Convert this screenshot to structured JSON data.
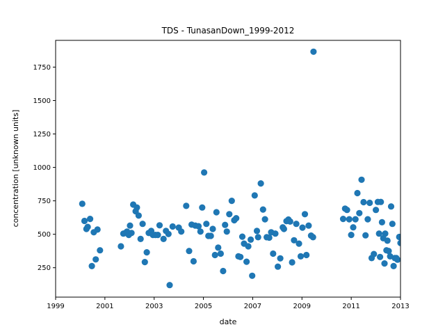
{
  "chart_data": {
    "type": "scatter",
    "title": "TDS - TunasanDown_1999-2012",
    "xlabel": "date",
    "ylabel": "concentration [unknown units]",
    "xlim": [
      1999,
      2013
    ],
    "ylim": [
      30,
      1950
    ],
    "x_ticks": [
      "1999",
      "2001",
      "2003",
      "2005",
      "2007",
      "2009",
      "2011",
      "2013"
    ],
    "x_tick_values": [
      1999,
      2001,
      2003,
      2005,
      2007,
      2009,
      2011,
      2013
    ],
    "y_ticks": [
      "250",
      "500",
      "750",
      "1000",
      "1250",
      "1500",
      "1750"
    ],
    "y_tick_values": [
      250,
      500,
      750,
      1000,
      1250,
      1500,
      1750
    ],
    "grid": false,
    "marker_color": "#1f77b4",
    "series": [
      {
        "points": [
          [
            2000.08,
            728
          ],
          [
            2000.17,
            600
          ],
          [
            2000.25,
            540
          ],
          [
            2000.3,
            555
          ],
          [
            2000.4,
            615
          ],
          [
            2000.47,
            262
          ],
          [
            2000.55,
            515
          ],
          [
            2000.63,
            312
          ],
          [
            2000.7,
            535
          ],
          [
            2000.8,
            380
          ],
          [
            2001.65,
            410
          ],
          [
            2001.75,
            505
          ],
          [
            2001.83,
            510
          ],
          [
            2001.9,
            520
          ],
          [
            2001.97,
            495
          ],
          [
            2002.02,
            565
          ],
          [
            2002.08,
            510
          ],
          [
            2002.15,
            722
          ],
          [
            2002.25,
            672
          ],
          [
            2002.3,
            700
          ],
          [
            2002.37,
            640
          ],
          [
            2002.45,
            465
          ],
          [
            2002.53,
            578
          ],
          [
            2002.62,
            292
          ],
          [
            2002.7,
            365
          ],
          [
            2002.78,
            510
          ],
          [
            2002.88,
            525
          ],
          [
            2002.95,
            495
          ],
          [
            2003.05,
            495
          ],
          [
            2003.15,
            495
          ],
          [
            2003.22,
            567
          ],
          [
            2003.38,
            465
          ],
          [
            2003.48,
            525
          ],
          [
            2003.58,
            502
          ],
          [
            2003.63,
            120
          ],
          [
            2003.75,
            558
          ],
          [
            2004.0,
            550
          ],
          [
            2004.1,
            520
          ],
          [
            2004.3,
            712
          ],
          [
            2004.42,
            375
          ],
          [
            2004.52,
            572
          ],
          [
            2004.6,
            298
          ],
          [
            2004.67,
            565
          ],
          [
            2004.8,
            560
          ],
          [
            2004.88,
            520
          ],
          [
            2004.95,
            700
          ],
          [
            2005.03,
            962
          ],
          [
            2005.12,
            578
          ],
          [
            2005.2,
            488
          ],
          [
            2005.3,
            488
          ],
          [
            2005.38,
            540
          ],
          [
            2005.47,
            345
          ],
          [
            2005.53,
            665
          ],
          [
            2005.6,
            400
          ],
          [
            2005.7,
            355
          ],
          [
            2005.8,
            225
          ],
          [
            2005.88,
            570
          ],
          [
            2005.95,
            520
          ],
          [
            2006.05,
            650
          ],
          [
            2006.15,
            750
          ],
          [
            2006.25,
            605
          ],
          [
            2006.33,
            620
          ],
          [
            2006.42,
            335
          ],
          [
            2006.5,
            330
          ],
          [
            2006.58,
            482
          ],
          [
            2006.65,
            430
          ],
          [
            2006.75,
            295
          ],
          [
            2006.82,
            410
          ],
          [
            2006.92,
            460
          ],
          [
            2006.98,
            190
          ],
          [
            2007.08,
            790
          ],
          [
            2007.17,
            525
          ],
          [
            2007.22,
            478
          ],
          [
            2007.33,
            880
          ],
          [
            2007.42,
            685
          ],
          [
            2007.5,
            612
          ],
          [
            2007.57,
            478
          ],
          [
            2007.67,
            475
          ],
          [
            2007.75,
            515
          ],
          [
            2007.83,
            355
          ],
          [
            2007.92,
            505
          ],
          [
            2008.02,
            258
          ],
          [
            2008.12,
            320
          ],
          [
            2008.22,
            552
          ],
          [
            2008.27,
            540
          ],
          [
            2008.37,
            598
          ],
          [
            2008.45,
            610
          ],
          [
            2008.52,
            595
          ],
          [
            2008.6,
            290
          ],
          [
            2008.68,
            455
          ],
          [
            2008.77,
            578
          ],
          [
            2008.88,
            430
          ],
          [
            2008.95,
            335
          ],
          [
            2009.02,
            550
          ],
          [
            2009.12,
            650
          ],
          [
            2009.18,
            345
          ],
          [
            2009.27,
            565
          ],
          [
            2009.37,
            490
          ],
          [
            2009.45,
            478
          ],
          [
            2009.47,
            1865
          ],
          [
            2010.67,
            615
          ],
          [
            2010.75,
            692
          ],
          [
            2010.83,
            682
          ],
          [
            2010.92,
            612
          ],
          [
            2011.0,
            495
          ],
          [
            2011.08,
            552
          ],
          [
            2011.17,
            612
          ],
          [
            2011.25,
            808
          ],
          [
            2011.33,
            658
          ],
          [
            2011.42,
            908
          ],
          [
            2011.5,
            740
          ],
          [
            2011.58,
            492
          ],
          [
            2011.67,
            612
          ],
          [
            2011.75,
            735
          ],
          [
            2011.83,
            322
          ],
          [
            2011.92,
            352
          ],
          [
            2012.0,
            682
          ],
          [
            2012.08,
            742
          ],
          [
            2012.13,
            505
          ],
          [
            2012.17,
            330
          ],
          [
            2012.2,
            742
          ],
          [
            2012.25,
            590
          ],
          [
            2012.3,
            470
          ],
          [
            2012.35,
            282
          ],
          [
            2012.38,
            505
          ],
          [
            2012.43,
            380
          ],
          [
            2012.47,
            452
          ],
          [
            2012.52,
            375
          ],
          [
            2012.58,
            335
          ],
          [
            2012.62,
            708
          ],
          [
            2012.67,
            578
          ],
          [
            2012.72,
            262
          ],
          [
            2012.77,
            322
          ],
          [
            2012.83,
            322
          ],
          [
            2012.88,
            310
          ],
          [
            2012.95,
            480
          ],
          [
            2013.0,
            435
          ]
        ]
      }
    ]
  }
}
